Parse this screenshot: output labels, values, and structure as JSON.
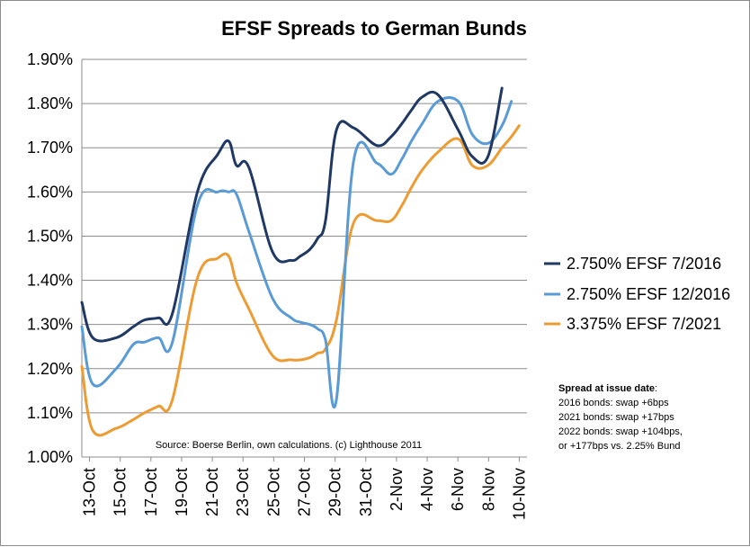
{
  "chart_data": {
    "type": "line",
    "title": "EFSF Spreads to German Bunds",
    "xlabel": "",
    "ylabel": "",
    "ylim": [
      1.0,
      1.9
    ],
    "y_ticks": [
      "1.00%",
      "1.10%",
      "1.20%",
      "1.30%",
      "1.40%",
      "1.50%",
      "1.60%",
      "1.70%",
      "1.80%",
      "1.90%"
    ],
    "x_tick_labels": [
      "13-Oct",
      "15-Oct",
      "17-Oct",
      "19-Oct",
      "21-Oct",
      "23-Oct",
      "25-Oct",
      "27-Oct",
      "29-Oct",
      "31-Oct",
      "2-Nov",
      "4-Nov",
      "6-Nov",
      "8-Nov",
      "10-Nov"
    ],
    "x": [
      0,
      0.7,
      2.2,
      3.3,
      4.0,
      4.9,
      5.8,
      7.4,
      8.7,
      9.4,
      9.9,
      10.7,
      12.2,
      13.4,
      14.0,
      14.6,
      15.1,
      15.6,
      16.3,
      17.4,
      18.9,
      19.8,
      20.5,
      21.1,
      21.8,
      22.8,
      24.1,
      25.0,
      26.0,
      26.9,
      27.5,
      28.0,
      28.5
    ],
    "series": [
      {
        "name": "2.750% EFSF 7/2016",
        "color": "#1f3864",
        "values": [
          1.35,
          1.27,
          1.27,
          1.295,
          1.31,
          1.315,
          1.325,
          1.6,
          1.685,
          1.715,
          1.66,
          1.655,
          1.465,
          1.445,
          1.455,
          1.47,
          1.495,
          1.535,
          1.74,
          1.745,
          1.705,
          1.725,
          1.755,
          1.785,
          1.815,
          1.82,
          1.74,
          1.68,
          1.68,
          1.835,
          null,
          null,
          null
        ]
      },
      {
        "name": "2.750% EFSF 12/2016",
        "color": "#5b9bd5",
        "values": [
          1.295,
          1.165,
          1.2,
          1.255,
          1.26,
          1.27,
          1.26,
          1.57,
          1.6,
          1.6,
          1.595,
          1.51,
          1.36,
          1.315,
          1.305,
          1.3,
          1.29,
          1.265,
          1.13,
          1.67,
          1.665,
          1.64,
          1.675,
          1.715,
          1.755,
          1.805,
          1.805,
          1.73,
          1.71,
          1.75,
          1.805,
          null,
          null
        ]
      },
      {
        "name": "3.375% EFSF 7/2021",
        "color": "#ed9b33",
        "values": [
          1.205,
          1.06,
          1.065,
          1.085,
          1.1,
          1.115,
          1.13,
          1.405,
          1.45,
          1.455,
          1.395,
          1.335,
          1.23,
          1.22,
          1.22,
          1.225,
          1.235,
          1.245,
          1.31,
          1.53,
          1.535,
          1.535,
          1.57,
          1.61,
          1.65,
          1.69,
          1.72,
          1.66,
          1.66,
          1.7,
          1.725,
          1.75,
          null
        ]
      }
    ],
    "legend_position": "right",
    "grid": "horizontal",
    "annotation_title": "Spread at issue date",
    "annotation_title_suffix": ":",
    "annotation_lines": [
      "2016 bonds: swap +6bps",
      "2021 bonds: swap +17bps",
      "2022 bonds: swap +104bps,",
      "or +177bps vs. 2.25% Bund"
    ],
    "source": "Source: Boerse Berlin, own calculations. (c) Lighthouse 2011"
  }
}
